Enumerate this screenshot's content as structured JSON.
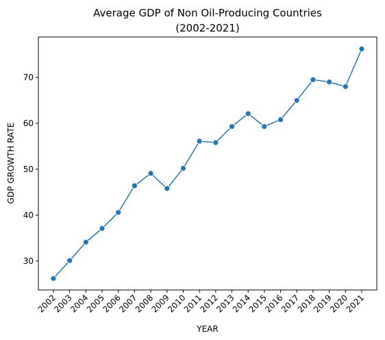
{
  "chart_data": {
    "type": "line",
    "title": "Average GDP of Non Oil-Producing Countries",
    "subtitle": "(2002-2021)",
    "xlabel": "YEAR",
    "ylabel": "GDP GROWTH RATE",
    "categories": [
      "2002",
      "2003",
      "2004",
      "2005",
      "2006",
      "2007",
      "2008",
      "2009",
      "2010",
      "2011",
      "2012",
      "2013",
      "2014",
      "2015",
      "2016",
      "2017",
      "2018",
      "2019",
      "2020",
      "2021"
    ],
    "values": [
      26.2,
      30.1,
      34.1,
      37.1,
      40.6,
      46.4,
      49.1,
      45.8,
      50.2,
      56.1,
      55.8,
      59.3,
      62.1,
      59.3,
      60.8,
      65.0,
      69.5,
      69.0,
      68.0,
      76.2
    ],
    "yticks": [
      30,
      40,
      50,
      60,
      70
    ],
    "ylim": [
      23.7,
      78.8
    ],
    "grid": false,
    "line_color": "#1f77b4",
    "marker": "circle"
  }
}
